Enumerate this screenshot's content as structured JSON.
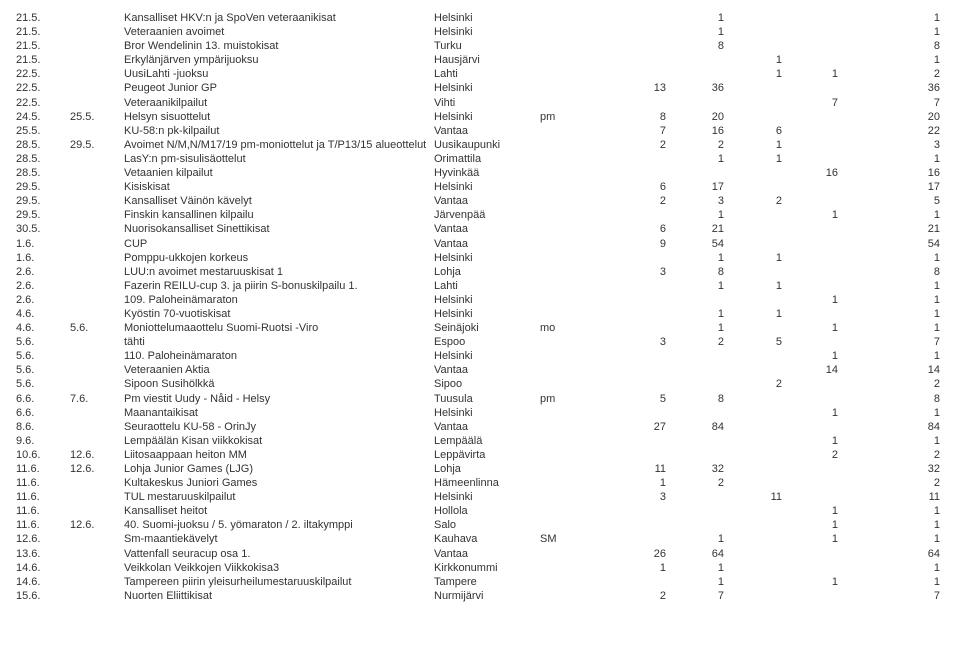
{
  "rows": [
    {
      "d1": "21.5.",
      "d2": "",
      "name": "Kansalliset HKV:n ja SpoVen veteraanikisat",
      "place": "Helsinki",
      "tag": "",
      "n1": "",
      "n2": "1",
      "n3": "",
      "n4": "",
      "n5": "1"
    },
    {
      "d1": "21.5.",
      "d2": "",
      "name": "Veteraanien avoimet",
      "place": "Helsinki",
      "tag": "",
      "n1": "",
      "n2": "1",
      "n3": "",
      "n4": "",
      "n5": "1"
    },
    {
      "d1": "21.5.",
      "d2": "",
      "name": "Bror Wendelinin 13. muistokisat",
      "place": "Turku",
      "tag": "",
      "n1": "",
      "n2": "8",
      "n3": "",
      "n4": "",
      "n5": "8"
    },
    {
      "d1": "21.5.",
      "d2": "",
      "name": "Erkylänjärven ympärijuoksu",
      "place": "Hausjärvi",
      "tag": "",
      "n1": "",
      "n2": "",
      "n3": "1",
      "n4": "",
      "n5": "1"
    },
    {
      "d1": "22.5.",
      "d2": "",
      "name": "UusiLahti -juoksu",
      "place": "Lahti",
      "tag": "",
      "n1": "",
      "n2": "",
      "n3": "1",
      "n4": "1",
      "n5": "2"
    },
    {
      "d1": "22.5.",
      "d2": "",
      "name": "Peugeot Junior GP",
      "place": "Helsinki",
      "tag": "",
      "n1": "13",
      "n2": "36",
      "n3": "",
      "n4": "",
      "n5": "36"
    },
    {
      "d1": "22.5.",
      "d2": "",
      "name": "Veteraanikilpailut",
      "place": "Vihti",
      "tag": "",
      "n1": "",
      "n2": "",
      "n3": "",
      "n4": "7",
      "n5": "7"
    },
    {
      "d1": "24.5.",
      "d2": "25.5.",
      "name": "Helsyn sisuottelut",
      "place": "Helsinki",
      "tag": "pm",
      "n1": "8",
      "n2": "20",
      "n3": "",
      "n4": "",
      "n5": "20"
    },
    {
      "d1": "25.5.",
      "d2": "",
      "name": "KU-58:n pk-kilpailut",
      "place": "Vantaa",
      "tag": "",
      "n1": "7",
      "n2": "16",
      "n3": "6",
      "n4": "",
      "n5": "22"
    },
    {
      "d1": "28.5.",
      "d2": "29.5.",
      "name": "Avoimet N/M,N/M17/19 pm-moniottelut ja T/P13/15 alueottelut",
      "place": "Uusikaupunki",
      "tag": "",
      "n1": "2",
      "n2": "2",
      "n3": "1",
      "n4": "",
      "n5": "3"
    },
    {
      "d1": "28.5.",
      "d2": "",
      "name": "LasY:n pm-sisulisäottelut",
      "place": "Orimattila",
      "tag": "",
      "n1": "",
      "n2": "1",
      "n3": "1",
      "n4": "",
      "n5": "1"
    },
    {
      "d1": "28.5.",
      "d2": "",
      "name": "Vetaanien kilpailut",
      "place": "Hyvinkää",
      "tag": "",
      "n1": "",
      "n2": "",
      "n3": "",
      "n4": "16",
      "n5": "16"
    },
    {
      "d1": "29.5.",
      "d2": "",
      "name": "Kisiskisat",
      "place": "Helsinki",
      "tag": "",
      "n1": "6",
      "n2": "17",
      "n3": "",
      "n4": "",
      "n5": "17"
    },
    {
      "d1": "29.5.",
      "d2": "",
      "name": "Kansalliset Väinön kävelyt",
      "place": "Vantaa",
      "tag": "",
      "n1": "2",
      "n2": "3",
      "n3": "2",
      "n4": "",
      "n5": "5"
    },
    {
      "d1": "29.5.",
      "d2": "",
      "name": "Finskin kansallinen kilpailu",
      "place": "Järvenpää",
      "tag": "",
      "n1": "",
      "n2": "1",
      "n3": "",
      "n4": "1",
      "n5": "1"
    },
    {
      "d1": "30.5.",
      "d2": "",
      "name": "Nuorisokansalliset Sinettikisat",
      "place": "Vantaa",
      "tag": "",
      "n1": "6",
      "n2": "21",
      "n3": "",
      "n4": "",
      "n5": "21"
    },
    {
      "d1": "1.6.",
      "d2": "",
      "name": "CUP",
      "place": "Vantaa",
      "tag": "",
      "n1": "9",
      "n2": "54",
      "n3": "",
      "n4": "",
      "n5": "54"
    },
    {
      "d1": "1.6.",
      "d2": "",
      "name": "Pomppu-ukkojen korkeus",
      "place": "Helsinki",
      "tag": "",
      "n1": "",
      "n2": "1",
      "n3": "1",
      "n4": "",
      "n5": "1"
    },
    {
      "d1": "2.6.",
      "d2": "",
      "name": "LUU:n avoimet mestaruuskisat 1",
      "place": "Lohja",
      "tag": "",
      "n1": "3",
      "n2": "8",
      "n3": "",
      "n4": "",
      "n5": "8"
    },
    {
      "d1": "2.6.",
      "d2": "",
      "name": "Fazerin REILU-cup 3. ja piirin S-bonuskilpailu 1.",
      "place": "Lahti",
      "tag": "",
      "n1": "",
      "n2": "1",
      "n3": "1",
      "n4": "",
      "n5": "1"
    },
    {
      "d1": "2.6.",
      "d2": "",
      "name": "109. Paloheinämaraton",
      "place": "Helsinki",
      "tag": "",
      "n1": "",
      "n2": "",
      "n3": "",
      "n4": "1",
      "n5": "1"
    },
    {
      "d1": "4.6.",
      "d2": "",
      "name": "Kyöstin 70-vuotiskisat",
      "place": "Helsinki",
      "tag": "",
      "n1": "",
      "n2": "1",
      "n3": "1",
      "n4": "",
      "n5": "1"
    },
    {
      "d1": "4.6.",
      "d2": "5.6.",
      "name": "Moniottelumaaottelu Suomi-Ruotsi -Viro",
      "place": "Seinäjoki",
      "tag": "mo",
      "n1": "",
      "n2": "1",
      "n3": "",
      "n4": "1",
      "n5": "1"
    },
    {
      "d1": "5.6.",
      "d2": "",
      "name": "tähti",
      "place": "Espoo",
      "tag": "",
      "n1": "3",
      "n2": "2",
      "n3": "5",
      "n4": "",
      "n5": "7"
    },
    {
      "d1": "5.6.",
      "d2": "",
      "name": "110. Paloheinämaraton",
      "place": "Helsinki",
      "tag": "",
      "n1": "",
      "n2": "",
      "n3": "",
      "n4": "1",
      "n5": "1"
    },
    {
      "d1": "5.6.",
      "d2": "",
      "name": "Veteraanien Aktia",
      "place": "Vantaa",
      "tag": "",
      "n1": "",
      "n2": "",
      "n3": "",
      "n4": "14",
      "n5": "14"
    },
    {
      "d1": "5.6.",
      "d2": "",
      "name": "Sipoon Susihölkkä",
      "place": "Sipoo",
      "tag": "",
      "n1": "",
      "n2": "",
      "n3": "2",
      "n4": "",
      "n5": "2"
    },
    {
      "d1": "6.6.",
      "d2": "7.6.",
      "name": "Pm viestit Uudy - Nåid - Helsy",
      "place": "Tuusula",
      "tag": "pm",
      "n1": "5",
      "n2": "8",
      "n3": "",
      "n4": "",
      "n5": "8"
    },
    {
      "d1": "6.6.",
      "d2": "",
      "name": "Maanantaikisat",
      "place": "Helsinki",
      "tag": "",
      "n1": "",
      "n2": "",
      "n3": "",
      "n4": "1",
      "n5": "1"
    },
    {
      "d1": "8.6.",
      "d2": "",
      "name": "Seuraottelu KU-58  -  OrinJy",
      "place": "Vantaa",
      "tag": "",
      "n1": "27",
      "n2": "84",
      "n3": "",
      "n4": "",
      "n5": "84"
    },
    {
      "d1": "9.6.",
      "d2": "",
      "name": "Lempäälän Kisan viikkokisat",
      "place": "Lempäälä",
      "tag": "",
      "n1": "",
      "n2": "",
      "n3": "",
      "n4": "1",
      "n5": "1"
    },
    {
      "d1": "10.6.",
      "d2": "12.6.",
      "name": "Liitosaappaan heiton MM",
      "place": "Leppävirta",
      "tag": "",
      "n1": "",
      "n2": "",
      "n3": "",
      "n4": "2",
      "n5": "2"
    },
    {
      "d1": "11.6.",
      "d2": "12.6.",
      "name": "Lohja Junior Games (LJG)",
      "place": "Lohja",
      "tag": "",
      "n1": "11",
      "n2": "32",
      "n3": "",
      "n4": "",
      "n5": "32"
    },
    {
      "d1": "11.6.",
      "d2": "",
      "name": "Kultakeskus Juniori Games",
      "place": "Hämeenlinna",
      "tag": "",
      "n1": "1",
      "n2": "2",
      "n3": "",
      "n4": "",
      "n5": "2"
    },
    {
      "d1": "11.6.",
      "d2": "",
      "name": "TUL mestaruuskilpailut",
      "place": "Helsinki",
      "tag": "",
      "n1": "3",
      "n2": "",
      "n3": "11",
      "n4": "",
      "n5": "11"
    },
    {
      "d1": "11.6.",
      "d2": "",
      "name": "Kansalliset heitot",
      "place": "Hollola",
      "tag": "",
      "n1": "",
      "n2": "",
      "n3": "",
      "n4": "1",
      "n5": "1"
    },
    {
      "d1": "11.6.",
      "d2": "12.6.",
      "name": "40. Suomi-juoksu / 5. yömaraton / 2. iltakymppi",
      "place": "Salo",
      "tag": "",
      "n1": "",
      "n2": "",
      "n3": "",
      "n4": "1",
      "n5": "1"
    },
    {
      "d1": "12.6.",
      "d2": "",
      "name": "Sm-maantiekävelyt",
      "place": "Kauhava",
      "tag": "SM",
      "n1": "",
      "n2": "1",
      "n3": "",
      "n4": "1",
      "n5": "1"
    },
    {
      "d1": "13.6.",
      "d2": "",
      "name": "Vattenfall seuracup osa 1.",
      "place": "Vantaa",
      "tag": "",
      "n1": "26",
      "n2": "64",
      "n3": "",
      "n4": "",
      "n5": "64"
    },
    {
      "d1": "14.6.",
      "d2": "",
      "name": "Veikkolan Veikkojen Viikkokisa3",
      "place": "Kirkkonummi",
      "tag": "",
      "n1": "1",
      "n2": "1",
      "n3": "",
      "n4": "",
      "n5": "1"
    },
    {
      "d1": "14.6.",
      "d2": "",
      "name": "Tampereen piirin yleisurheilumestaruuskilpailut",
      "place": "Tampere",
      "tag": "",
      "n1": "",
      "n2": "1",
      "n3": "",
      "n4": "1",
      "n5": "1"
    },
    {
      "d1": "15.6.",
      "d2": "",
      "name": "Nuorten Eliittikisat",
      "place": "Nurmijärvi",
      "tag": "",
      "n1": "2",
      "n2": "7",
      "n3": "",
      "n4": "",
      "n5": "7"
    }
  ]
}
